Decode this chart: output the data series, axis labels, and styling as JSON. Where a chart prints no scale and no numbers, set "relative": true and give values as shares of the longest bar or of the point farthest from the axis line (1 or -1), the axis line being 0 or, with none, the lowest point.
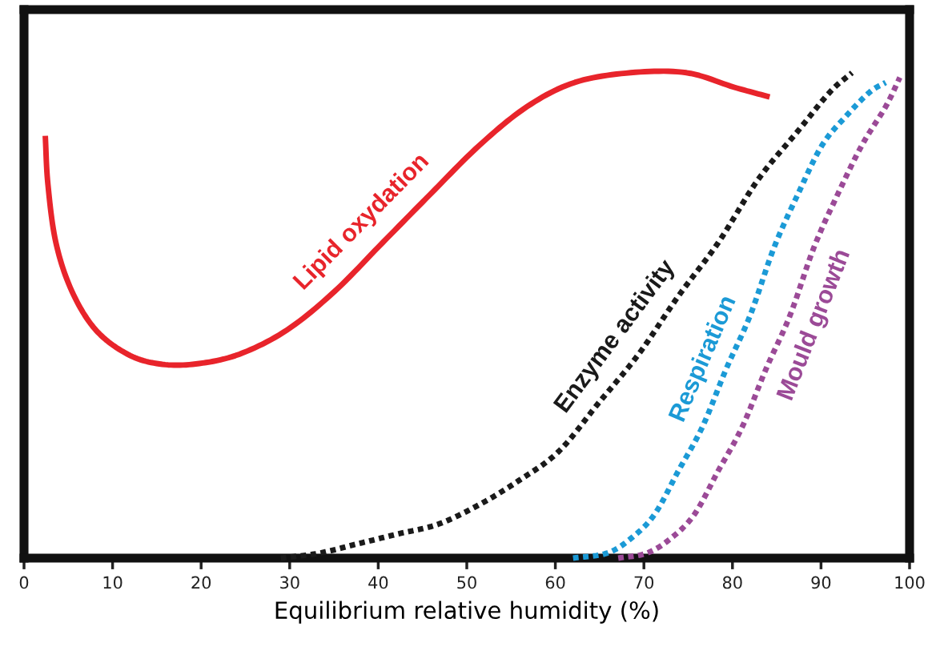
{
  "chart_data": {
    "type": "line",
    "relative": true,
    "xlabel": "Equilibrium relative humidity (%)",
    "xlim": [
      0,
      100
    ],
    "xticks": [
      0,
      10,
      20,
      30,
      40,
      50,
      60,
      70,
      80,
      90,
      100
    ],
    "grid": false,
    "legend": false,
    "series": [
      {
        "name": "Lipid oxydation",
        "color": "#e8242b",
        "line_style": "solid",
        "x": [
          2.4,
          2.7,
          3.6,
          5.4,
          8.1,
          11.7,
          15.3,
          19.4,
          24.3,
          29.7,
          35.1,
          40.5,
          45.9,
          51.4,
          56.8,
          62.2,
          68.5,
          74.8,
          80.2,
          84.2
        ],
        "values": [
          0.87,
          0.77,
          0.65,
          0.55,
          0.47,
          0.42,
          0.4,
          0.4,
          0.42,
          0.47,
          0.55,
          0.65,
          0.75,
          0.85,
          0.93,
          0.98,
          1.0,
          1.0,
          0.97,
          0.95
        ]
      },
      {
        "name": "Enzyme activity",
        "color": "#1a1a1a",
        "line_style": "dotted",
        "x": [
          29.0,
          33.3,
          37.8,
          42.3,
          46.8,
          51.4,
          55.9,
          60.4,
          64.9,
          69.4,
          73.9,
          78.4,
          82.9,
          87.4,
          91.0,
          93.5
        ],
        "values": [
          0,
          0.01,
          0.03,
          0.05,
          0.07,
          0.11,
          0.16,
          0.22,
          0.32,
          0.42,
          0.54,
          0.65,
          0.78,
          0.88,
          0.96,
          1.0
        ]
      },
      {
        "name": "Respiration",
        "color": "#1b9ad6",
        "line_style": "dotted",
        "x": [
          62.0,
          65.8,
          68.5,
          71.2,
          73.9,
          76.6,
          79.3,
          82.0,
          84.7,
          87.4,
          90.1,
          92.8,
          95.5,
          97.3
        ],
        "values": [
          0,
          0.01,
          0.04,
          0.09,
          0.18,
          0.27,
          0.39,
          0.5,
          0.64,
          0.75,
          0.85,
          0.91,
          0.96,
          0.98
        ]
      },
      {
        "name": "Mould growth",
        "color": "#9b4a97",
        "line_style": "dotted",
        "x": [
          67.1,
          70.3,
          73.0,
          75.7,
          78.4,
          81.1,
          83.8,
          86.5,
          89.2,
          91.9,
          94.6,
          97.3,
          98.9
        ],
        "values": [
          0,
          0.01,
          0.04,
          0.09,
          0.18,
          0.27,
          0.39,
          0.5,
          0.64,
          0.75,
          0.85,
          0.93,
          0.99
        ]
      }
    ]
  }
}
